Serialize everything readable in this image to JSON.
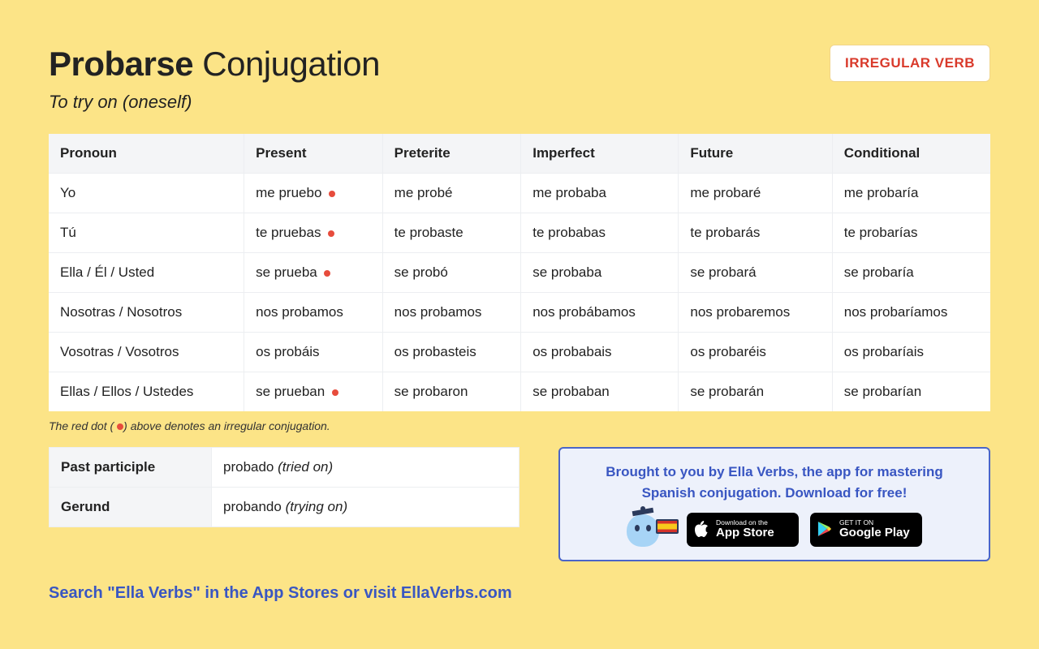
{
  "colors": {
    "page_bg": "#fce487",
    "badge_text": "#d93a2b",
    "irregular_dot": "#e74c3c",
    "promo_border": "#4a65c8",
    "promo_bg": "#edf1fb",
    "link_text": "#3956c2",
    "table_header_bg": "#f4f5f7",
    "cell_border": "#eceef1"
  },
  "header": {
    "title_bold": "Probarse",
    "title_rest": " Conjugation",
    "subtitle": "To try on (oneself)",
    "badge": "IRREGULAR VERB"
  },
  "conjugation": {
    "columns": [
      "Pronoun",
      "Present",
      "Preterite",
      "Imperfect",
      "Future",
      "Conditional"
    ],
    "rows": [
      {
        "pronoun": "Yo",
        "cells": [
          {
            "text": "me pruebo",
            "irregular": true
          },
          {
            "text": "me probé",
            "irregular": false
          },
          {
            "text": "me probaba",
            "irregular": false
          },
          {
            "text": "me probaré",
            "irregular": false
          },
          {
            "text": "me probaría",
            "irregular": false
          }
        ]
      },
      {
        "pronoun": "Tú",
        "cells": [
          {
            "text": "te pruebas",
            "irregular": true
          },
          {
            "text": "te probaste",
            "irregular": false
          },
          {
            "text": "te probabas",
            "irregular": false
          },
          {
            "text": "te probarás",
            "irregular": false
          },
          {
            "text": "te probarías",
            "irregular": false
          }
        ]
      },
      {
        "pronoun": "Ella / Él / Usted",
        "cells": [
          {
            "text": "se prueba",
            "irregular": true
          },
          {
            "text": "se probó",
            "irregular": false
          },
          {
            "text": "se probaba",
            "irregular": false
          },
          {
            "text": "se probará",
            "irregular": false
          },
          {
            "text": "se probaría",
            "irregular": false
          }
        ]
      },
      {
        "pronoun": "Nosotras / Nosotros",
        "cells": [
          {
            "text": "nos probamos",
            "irregular": false
          },
          {
            "text": "nos probamos",
            "irregular": false
          },
          {
            "text": "nos probábamos",
            "irregular": false
          },
          {
            "text": "nos probaremos",
            "irregular": false
          },
          {
            "text": "nos probaríamos",
            "irregular": false
          }
        ]
      },
      {
        "pronoun": "Vosotras / Vosotros",
        "cells": [
          {
            "text": "os probáis",
            "irregular": false
          },
          {
            "text": "os probasteis",
            "irregular": false
          },
          {
            "text": "os probabais",
            "irregular": false
          },
          {
            "text": "os probaréis",
            "irregular": false
          },
          {
            "text": "os probaríais",
            "irregular": false
          }
        ]
      },
      {
        "pronoun": "Ellas / Ellos / Ustedes",
        "cells": [
          {
            "text": "se prueban",
            "irregular": true
          },
          {
            "text": "se probaron",
            "irregular": false
          },
          {
            "text": "se probaban",
            "irregular": false
          },
          {
            "text": "se probarán",
            "irregular": false
          },
          {
            "text": "se probarían",
            "irregular": false
          }
        ]
      }
    ]
  },
  "footnote_pre": "The red dot (",
  "footnote_post": ") above denotes an irregular conjugation.",
  "forms": {
    "rows": [
      {
        "label": "Past participle",
        "value": "probado",
        "translation": "tried on"
      },
      {
        "label": "Gerund",
        "value": "probando",
        "translation": "trying on"
      }
    ]
  },
  "promo": {
    "line1": "Brought to you by Ella Verbs, the app for mastering",
    "line2": "Spanish conjugation. Download for free!",
    "appstore_small": "Download on the",
    "appstore_big": "App Store",
    "play_small": "GET IT ON",
    "play_big": "Google Play"
  },
  "cta": "Search \"Ella Verbs\" in the App Stores or visit EllaVerbs.com"
}
